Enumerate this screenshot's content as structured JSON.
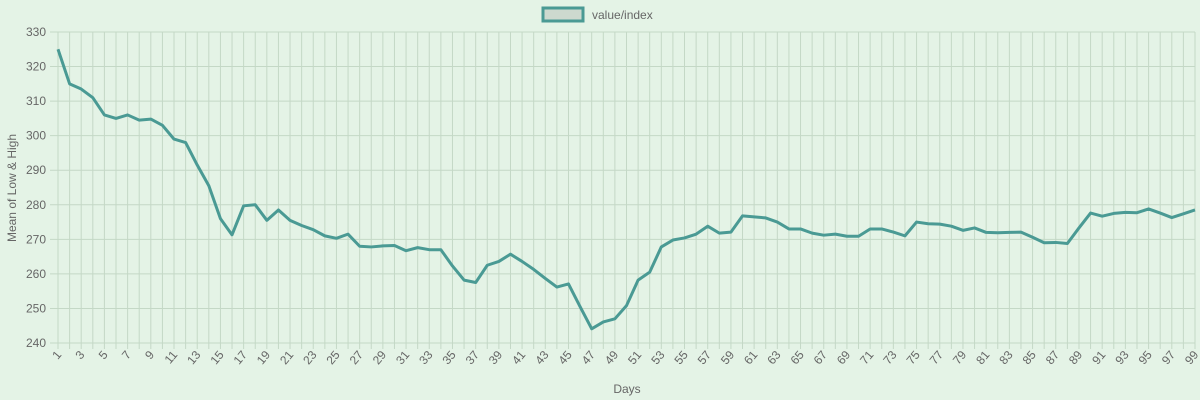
{
  "chart_data": {
    "type": "line",
    "legend_label": "value/index",
    "xlabel": "Days",
    "ylabel": "Mean of Low & High",
    "categories": [
      1,
      null,
      3,
      null,
      5,
      null,
      7,
      null,
      9,
      null,
      11,
      null,
      13,
      null,
      15,
      null,
      17,
      null,
      19,
      null,
      21,
      null,
      23,
      null,
      25,
      null,
      27,
      null,
      29,
      null,
      31,
      null,
      33,
      null,
      35,
      null,
      37,
      null,
      39,
      null,
      41,
      null,
      43,
      null,
      45,
      null,
      47,
      null,
      49,
      null,
      51,
      null,
      53,
      null,
      55,
      null,
      57,
      null,
      59,
      null,
      61,
      null,
      63,
      null,
      65,
      null,
      67,
      null,
      69,
      null,
      71,
      null,
      73,
      null,
      75,
      null,
      77,
      null,
      79,
      null,
      81,
      null,
      83,
      null,
      85,
      null,
      87,
      null,
      89,
      null,
      91,
      null,
      93,
      null,
      95,
      null,
      97,
      null,
      99
    ],
    "values": [
      325,
      315,
      313.5,
      311,
      306,
      305,
      306,
      304.5,
      304.8,
      303,
      299,
      298,
      291.5,
      285.5,
      276,
      271.3,
      279.7,
      280,
      275.5,
      278.5,
      275.5,
      274,
      272.8,
      271,
      270.3,
      271.5,
      268,
      267.8,
      268.1,
      268.2,
      266.7,
      267.6,
      267,
      267,
      262.3,
      258.2,
      257.5,
      262.5,
      263.6,
      265.7,
      263.6,
      261.3,
      258.7,
      256.2,
      257.1,
      250.5,
      244.1,
      246.1,
      247,
      250.8,
      258.2,
      260.5,
      267.8,
      269.8,
      270.4,
      271.5,
      273.8,
      271.8,
      272.1,
      276.8,
      276.5,
      276.2,
      275,
      273,
      273,
      271.8,
      271.2,
      271.5,
      270.9,
      270.9,
      273,
      273,
      272.1,
      271,
      275,
      274.5,
      274.4,
      273.8,
      272.6,
      273.3,
      272,
      271.9,
      272,
      272.1,
      270.6,
      269,
      269.1,
      268.8,
      273.3,
      277.6,
      276.7,
      277.5,
      277.8,
      277.7,
      278.8,
      277.6,
      276.3,
      277.4,
      278.5
    ],
    "color": "#4a9a94",
    "legend_fill": "#cdd9cf",
    "ylim": [
      240,
      330
    ],
    "yticks": [
      240,
      250,
      260,
      270,
      280,
      290,
      300,
      310,
      320,
      330
    ],
    "grid": true,
    "legend_position": "top"
  }
}
